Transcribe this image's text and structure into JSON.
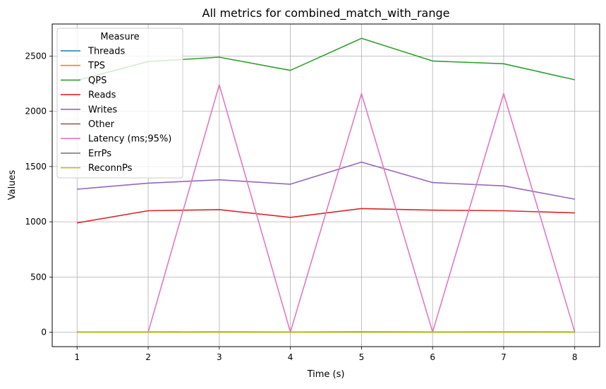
{
  "chart_data": {
    "type": "line",
    "title": "All metrics for combined_match_with_range",
    "xlabel": "Time (s)",
    "ylabel": "Values",
    "x": [
      1,
      2,
      3,
      4,
      5,
      6,
      7,
      8
    ],
    "xlim": [
      0.65,
      8.35
    ],
    "ylim": [
      -130,
      2790
    ],
    "xticks": [
      "1",
      "2",
      "3",
      "4",
      "5",
      "6",
      "7",
      "8"
    ],
    "yticks": [
      0,
      500,
      1000,
      1500,
      2000,
      2500
    ],
    "grid": true,
    "legend": {
      "title": "Measure",
      "placement": "top-left"
    },
    "series": [
      {
        "name": "Threads",
        "color": "#1f77b4",
        "values": [
          1,
          1,
          1,
          1,
          1,
          1,
          1,
          1
        ]
      },
      {
        "name": "TPS",
        "color": "#ff7f0e",
        "values": [
          3,
          3,
          4,
          2,
          5,
          3,
          4,
          3
        ]
      },
      {
        "name": "QPS",
        "color": "#2ca02c",
        "values": [
          2280,
          2450,
          2490,
          2370,
          2660,
          2455,
          2430,
          2285
        ]
      },
      {
        "name": "Reads",
        "color": "#d62728",
        "values": [
          990,
          1100,
          1110,
          1040,
          1120,
          1105,
          1100,
          1080
        ]
      },
      {
        "name": "Writes",
        "color": "#9467bd",
        "values": [
          1295,
          1350,
          1380,
          1340,
          1540,
          1355,
          1325,
          1205
        ]
      },
      {
        "name": "Other",
        "color": "#8c564b",
        "values": [
          0,
          0,
          0,
          0,
          0,
          0,
          0,
          0
        ]
      },
      {
        "name": "Latency (ms;95%)",
        "color": "#e377c2",
        "values": [
          2,
          2,
          2240,
          2,
          2160,
          2,
          2160,
          2
        ]
      },
      {
        "name": "ErrPs",
        "color": "#7f7f7f",
        "values": [
          0,
          0,
          0,
          0,
          0,
          0,
          0,
          0
        ]
      },
      {
        "name": "ReconnPs",
        "color": "#bcbd22",
        "values": [
          0,
          0,
          0,
          0,
          0,
          0,
          0,
          0
        ]
      }
    ]
  }
}
